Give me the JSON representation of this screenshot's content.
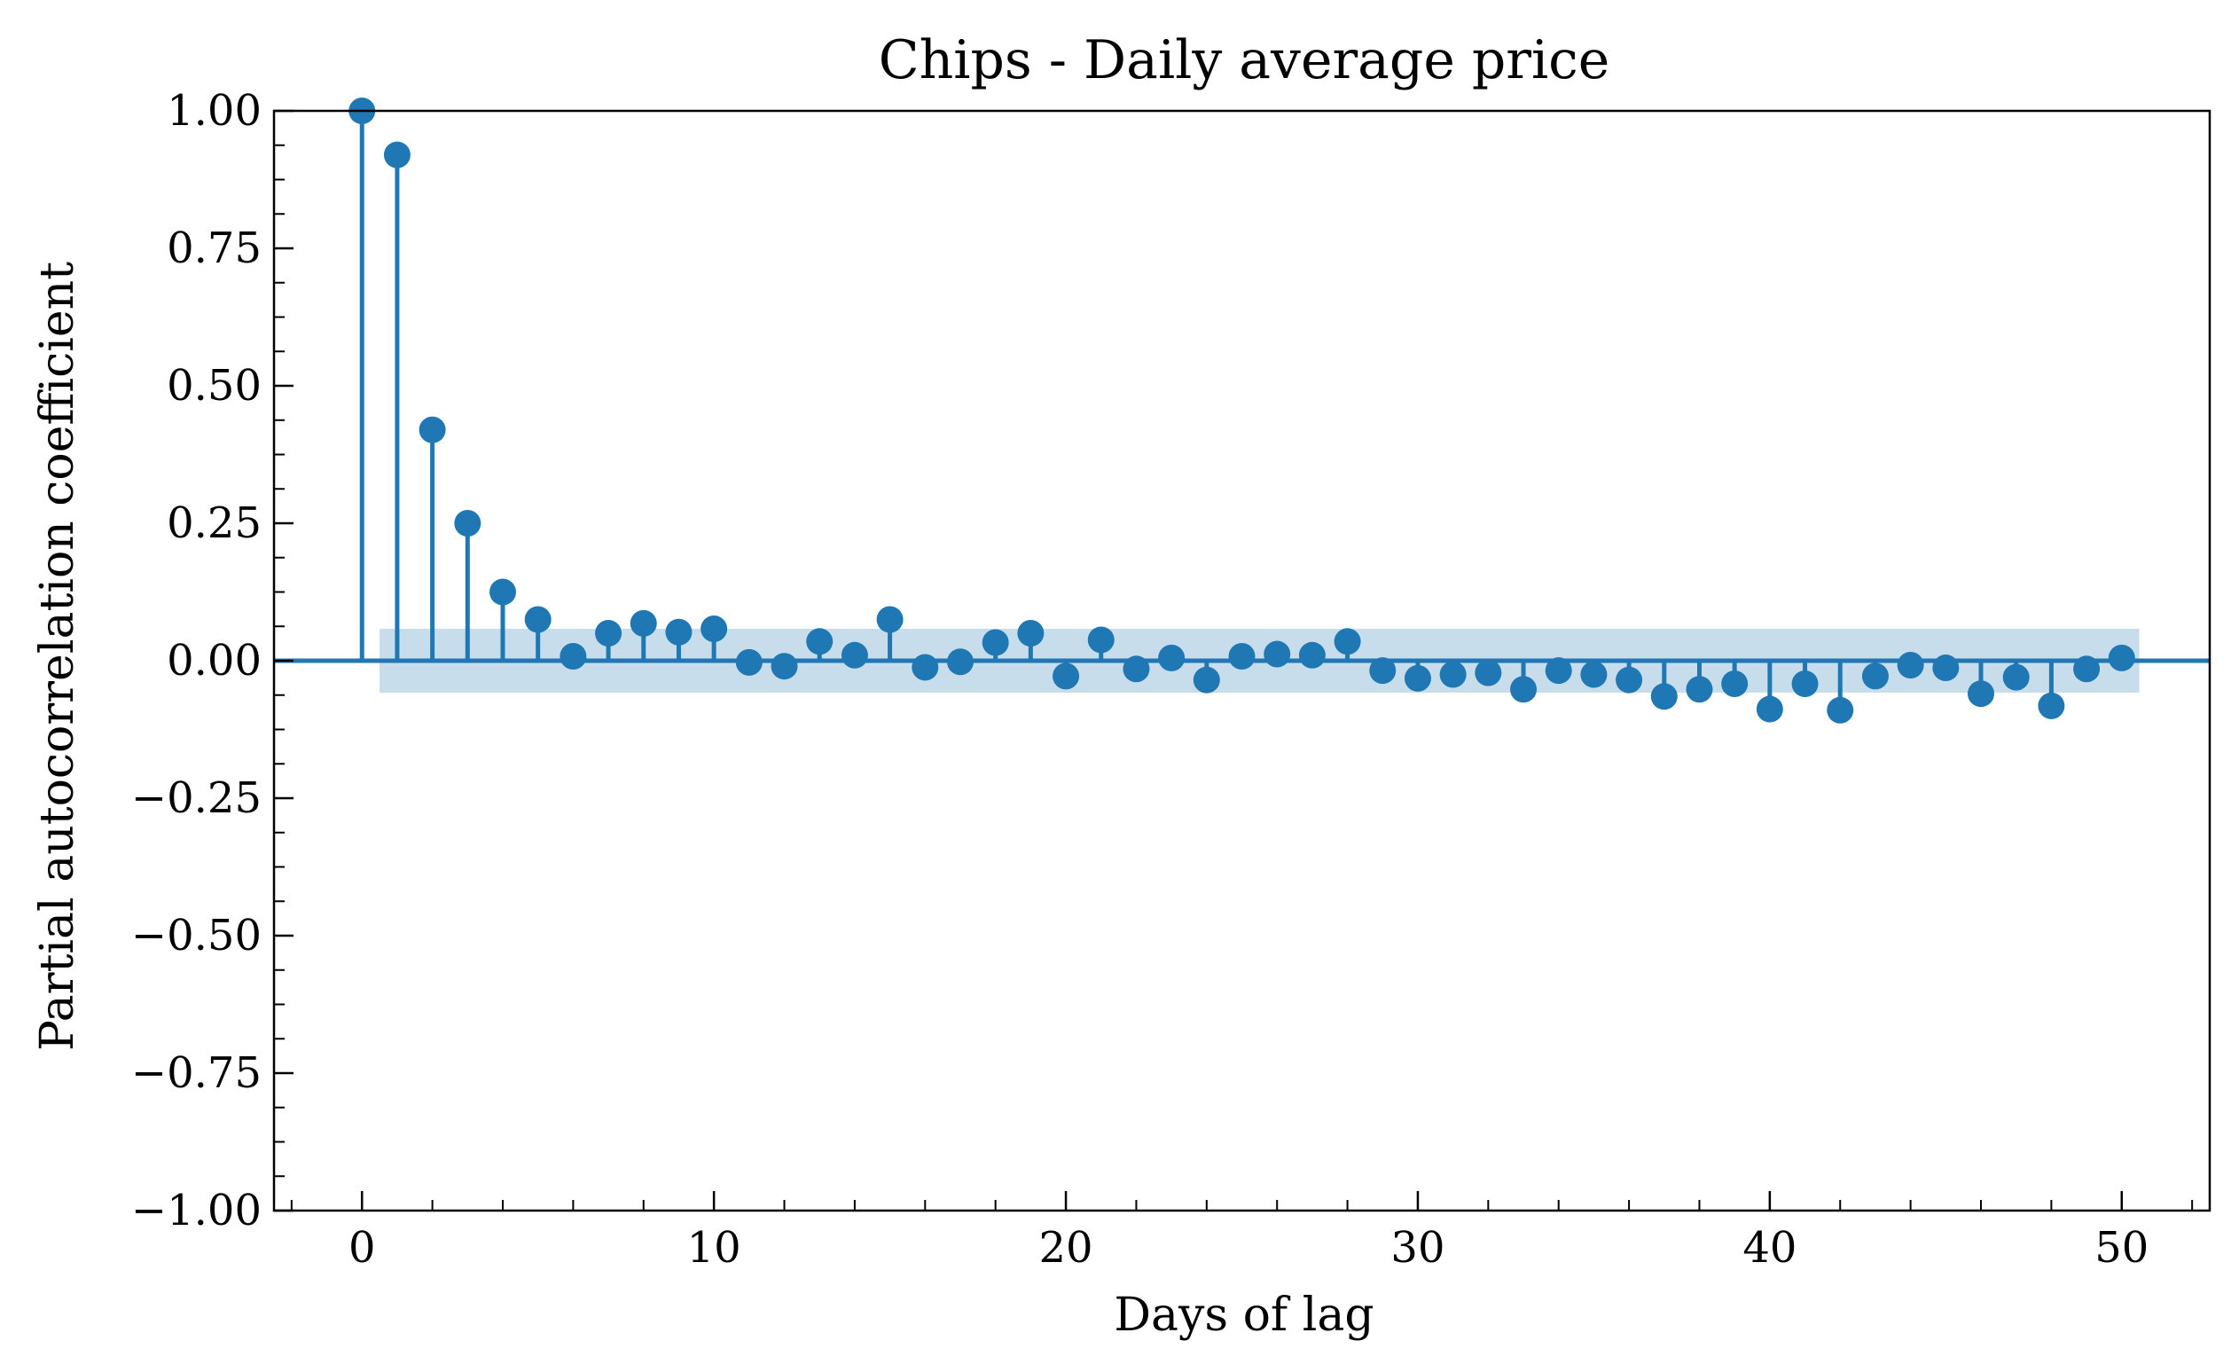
{
  "chart_data": {
    "type": "scatter",
    "subtype": "stem",
    "title": "Chips - Daily average price",
    "xlabel": "Days of lag",
    "ylabel": "Partial autocorrelation coefficient",
    "xlim": [
      -2.5,
      52.5
    ],
    "ylim": [
      -1.0,
      1.0
    ],
    "x_ticks": [
      0,
      10,
      20,
      30,
      40,
      50
    ],
    "x_tick_labels": [
      "0",
      "10",
      "20",
      "30",
      "40",
      "50"
    ],
    "y_ticks": [
      1.0,
      0.75,
      0.5,
      0.25,
      0.0,
      -0.25,
      -0.5,
      -0.75,
      -1.0
    ],
    "y_tick_labels": [
      "1.00",
      "0.75",
      "0.50",
      "0.25",
      "0.00",
      "−0.25",
      "−0.50",
      "−0.75",
      "−1.00"
    ],
    "grid": false,
    "color": "#1f77b4",
    "confidence_band": {
      "lower": -0.058,
      "upper": 0.058,
      "x_start": 0.5,
      "x_end": 50.5,
      "color": "#1f77b4"
    },
    "x": [
      0,
      1,
      2,
      3,
      4,
      5,
      6,
      7,
      8,
      9,
      10,
      11,
      12,
      13,
      14,
      15,
      16,
      17,
      18,
      19,
      20,
      21,
      22,
      23,
      24,
      25,
      26,
      27,
      28,
      29,
      30,
      31,
      32,
      33,
      34,
      35,
      36,
      37,
      38,
      39,
      40,
      41,
      42,
      43,
      44,
      45,
      46,
      47,
      48,
      49,
      50
    ],
    "values": [
      1.0,
      0.92,
      0.42,
      0.25,
      0.125,
      0.075,
      0.008,
      0.05,
      0.068,
      0.052,
      0.058,
      -0.003,
      -0.01,
      0.035,
      0.01,
      0.075,
      -0.012,
      -0.002,
      0.033,
      0.05,
      -0.028,
      0.038,
      -0.015,
      0.005,
      -0.035,
      0.008,
      0.012,
      0.01,
      0.035,
      -0.018,
      -0.032,
      -0.025,
      -0.022,
      -0.052,
      -0.018,
      -0.025,
      -0.035,
      -0.065,
      -0.052,
      -0.042,
      -0.088,
      -0.042,
      -0.09,
      -0.028,
      -0.008,
      -0.013,
      -0.06,
      -0.03,
      -0.082,
      -0.015,
      0.005
    ]
  }
}
